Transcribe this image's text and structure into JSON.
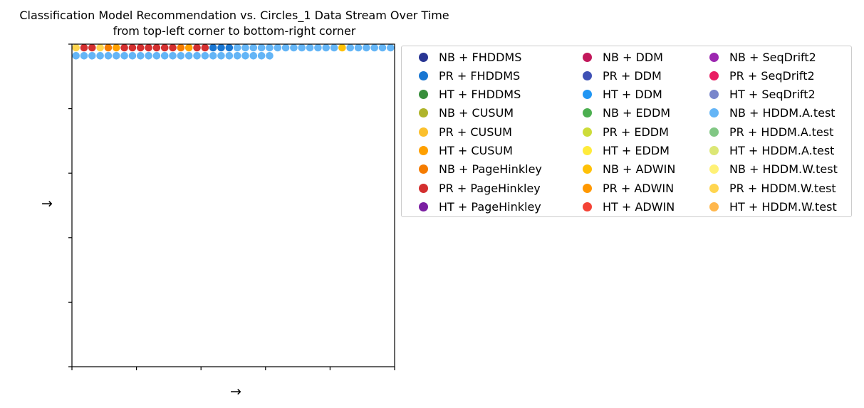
{
  "chart_data": {
    "type": "scatter",
    "title": "Classification Model Recommendation vs. Circles_1 Data Stream Over Time",
    "subtitle": "from top-left corner to bottom-right corner",
    "xlabel": "→",
    "ylabel": "→",
    "grid": false,
    "legend_position": "outside-right",
    "legend": [
      {
        "name": "NB + FHDDMS",
        "color": "#283593"
      },
      {
        "name": "PR + FHDDMS",
        "color": "#1976d2"
      },
      {
        "name": "HT + FHDDMS",
        "color": "#388e3c"
      },
      {
        "name": "NB + CUSUM",
        "color": "#afb42b"
      },
      {
        "name": "PR + CUSUM",
        "color": "#fbc02d"
      },
      {
        "name": "HT + CUSUM",
        "color": "#ffa000"
      },
      {
        "name": "NB + PageHinkley",
        "color": "#f57c00"
      },
      {
        "name": "PR + PageHinkley",
        "color": "#d32f2f"
      },
      {
        "name": "HT + PageHinkley",
        "color": "#7b1fa2"
      },
      {
        "name": "NB + DDM",
        "color": "#c2185b"
      },
      {
        "name": "PR + DDM",
        "color": "#3f51b5"
      },
      {
        "name": "HT + DDM",
        "color": "#2196f3"
      },
      {
        "name": "NB + EDDM",
        "color": "#4caf50"
      },
      {
        "name": "PR + EDDM",
        "color": "#cddc39"
      },
      {
        "name": "HT + EDDM",
        "color": "#ffeb3b"
      },
      {
        "name": "NB + ADWIN",
        "color": "#ffc107"
      },
      {
        "name": "PR + ADWIN",
        "color": "#ff9800"
      },
      {
        "name": "HT + ADWIN",
        "color": "#f44336"
      },
      {
        "name": "NB + SeqDrift2",
        "color": "#9c27b0"
      },
      {
        "name": "PR + SeqDrift2",
        "color": "#e91e63"
      },
      {
        "name": "HT + SeqDrift2",
        "color": "#7986cb"
      },
      {
        "name": "NB + HDDM.A.test",
        "color": "#64b5f6"
      },
      {
        "name": "PR + HDDM.A.test",
        "color": "#81c784"
      },
      {
        "name": "HT + HDDM.A.test",
        "color": "#dce775"
      },
      {
        "name": "NB + HDDM.W.test",
        "color": "#fff176"
      },
      {
        "name": "PR + HDDM.W.test",
        "color": "#ffd54f"
      },
      {
        "name": "HT + HDDM.W.test",
        "color": "#ffb74d"
      }
    ],
    "grid_columns": 40,
    "points_order": "row-major, from top-left corner to bottom-right corner",
    "rows": [
      [
        "PR + HDDM.W.test",
        "PR + PageHinkley",
        "PR + PageHinkley",
        "PR + HDDM.W.test",
        "NB + PageHinkley",
        "HT + CUSUM",
        "PR + PageHinkley",
        "PR + PageHinkley",
        "PR + PageHinkley",
        "PR + PageHinkley",
        "PR + PageHinkley",
        "PR + PageHinkley",
        "PR + PageHinkley",
        "NB + PageHinkley",
        "HT + CUSUM",
        "PR + PageHinkley",
        "PR + PageHinkley",
        "PR + FHDDMS",
        "PR + FHDDMS",
        "PR + FHDDMS",
        "NB + HDDM.A.test",
        "NB + HDDM.A.test",
        "NB + HDDM.A.test",
        "NB + HDDM.A.test",
        "NB + HDDM.A.test",
        "NB + HDDM.A.test",
        "NB + HDDM.A.test",
        "NB + HDDM.A.test",
        "NB + HDDM.A.test",
        "NB + HDDM.A.test",
        "NB + HDDM.A.test",
        "NB + HDDM.A.test",
        "NB + HDDM.A.test",
        "NB + ADWIN",
        "NB + HDDM.A.test",
        "NB + HDDM.A.test",
        "NB + HDDM.A.test",
        "NB + HDDM.A.test",
        "NB + HDDM.A.test",
        "NB + HDDM.A.test"
      ],
      [
        "NB + HDDM.A.test",
        "NB + HDDM.A.test",
        "NB + HDDM.A.test",
        "NB + HDDM.A.test",
        "NB + HDDM.A.test",
        "NB + HDDM.A.test",
        "NB + HDDM.A.test",
        "NB + HDDM.A.test",
        "NB + HDDM.A.test",
        "NB + HDDM.A.test",
        "NB + HDDM.A.test",
        "NB + HDDM.A.test",
        "NB + HDDM.A.test",
        "NB + HDDM.A.test",
        "NB + HDDM.A.test",
        "NB + HDDM.A.test",
        "NB + HDDM.A.test",
        "NB + HDDM.A.test",
        "NB + HDDM.A.test",
        "NB + HDDM.A.test",
        "NB + HDDM.A.test",
        "NB + HDDM.A.test",
        "NB + HDDM.A.test",
        "NB + HDDM.A.test",
        "NB + HDDM.A.test"
      ]
    ]
  }
}
